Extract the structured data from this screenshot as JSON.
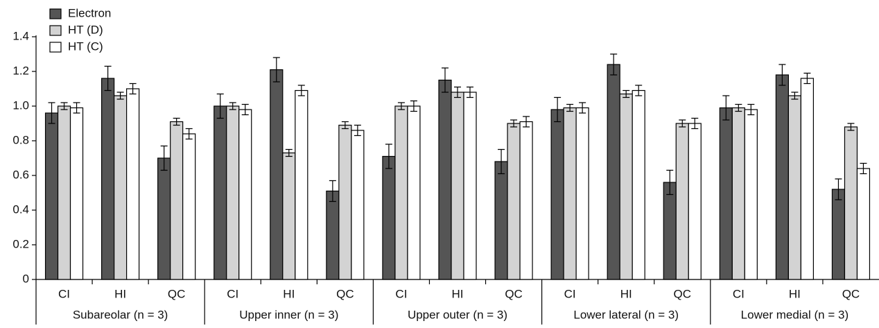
{
  "chart_data": {
    "type": "bar",
    "groups": [
      "Subareolar (n = 3)",
      "Upper inner (n = 3)",
      "Upper outer (n = 3)",
      "Lower lateral (n = 3)",
      "Lower medial (n = 3)"
    ],
    "categories": [
      "CI",
      "HI",
      "QC",
      "CI",
      "HI",
      "QC",
      "CI",
      "HI",
      "QC",
      "CI",
      "HI",
      "QC",
      "CI",
      "HI",
      "QC"
    ],
    "series": [
      {
        "name": "Electron",
        "color": "#555555",
        "values": [
          0.96,
          1.16,
          0.7,
          1.0,
          1.21,
          0.51,
          0.71,
          1.15,
          0.68,
          0.98,
          1.24,
          0.56,
          0.99,
          1.18,
          0.52
        ],
        "errors": [
          0.06,
          0.07,
          0.07,
          0.07,
          0.07,
          0.06,
          0.07,
          0.07,
          0.07,
          0.07,
          0.06,
          0.07,
          0.07,
          0.06,
          0.06
        ]
      },
      {
        "name": "HT (D)",
        "color": "#d3d3d3",
        "values": [
          1.0,
          1.06,
          0.91,
          1.0,
          0.73,
          0.89,
          1.0,
          1.08,
          0.9,
          0.99,
          1.07,
          0.9,
          0.99,
          1.06,
          0.88
        ],
        "errors": [
          0.02,
          0.02,
          0.02,
          0.02,
          0.02,
          0.02,
          0.02,
          0.03,
          0.02,
          0.02,
          0.02,
          0.02,
          0.02,
          0.02,
          0.02
        ]
      },
      {
        "name": "HT (C)",
        "color": "#ffffff",
        "values": [
          0.99,
          1.1,
          0.84,
          0.98,
          1.09,
          0.86,
          1.0,
          1.08,
          0.91,
          0.99,
          1.09,
          0.9,
          0.98,
          1.16,
          0.64
        ],
        "errors": [
          0.03,
          0.03,
          0.03,
          0.03,
          0.03,
          0.03,
          0.03,
          0.03,
          0.03,
          0.03,
          0.03,
          0.03,
          0.03,
          0.03,
          0.03
        ]
      }
    ],
    "ylim": [
      0,
      1.4
    ],
    "yticks": [
      0,
      0.2,
      0.4,
      0.6,
      0.8,
      {
        "value": 1,
        "label": "1.0"
      },
      1.2,
      1.4
    ],
    "legend": "top-left"
  }
}
